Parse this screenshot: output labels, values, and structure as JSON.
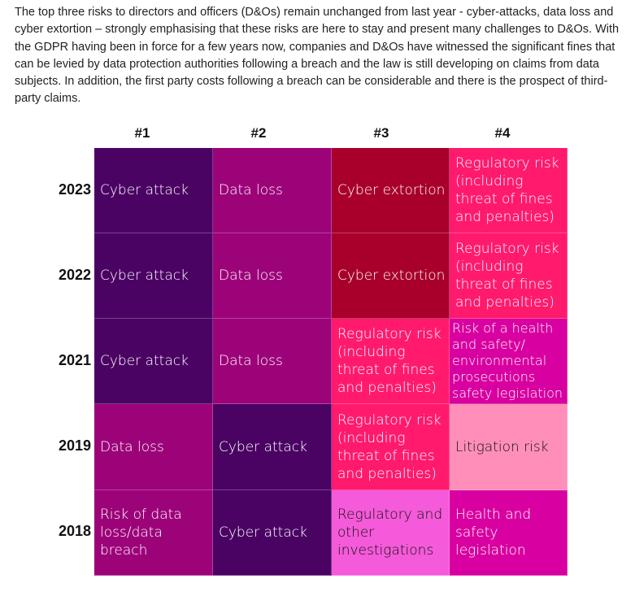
{
  "intro": "The top three risks to directors and officers (D&Os) remain unchanged from last year - cyber-attacks, data loss and cyber extortion – strongly emphasising that these risks are here to stay and present many challenges to D&Os. With the GDPR having been in force for a few years now, companies and D&Os have witnessed the significant fines that can be levied by data protection authorities following a breach and the law is still developing on claims from data subjects. In addition, the first party costs following a breach can be considerable and there is the prospect of third-party claims.",
  "columns": [
    "#1",
    "#2",
    "#3",
    "#4"
  ],
  "rows": [
    {
      "year": "2023",
      "cells": [
        {
          "text": "Cyber attack",
          "color": "#4a0363"
        },
        {
          "text": "Data loss",
          "color": "#9c0379"
        },
        {
          "text": "Cyber extortion",
          "color": "#a8002b"
        },
        {
          "text": "Regulatory risk (including threat of fines and penalties)",
          "color": "#ff1a6e"
        }
      ]
    },
    {
      "year": "2022",
      "cells": [
        {
          "text": "Cyber attack",
          "color": "#4a0363"
        },
        {
          "text": "Data loss",
          "color": "#9c0379"
        },
        {
          "text": "Cyber extortion",
          "color": "#a8002b"
        },
        {
          "text": "Regulatory risk (including threat of fines and penalties)",
          "color": "#ff1a6e"
        }
      ]
    },
    {
      "year": "2021",
      "cells": [
        {
          "text": "Cyber attack",
          "color": "#4a0363"
        },
        {
          "text": "Data loss",
          "color": "#9c0379"
        },
        {
          "text": "Regulatory risk (including threat of fines and penalties)",
          "color": "#ff1a6e"
        },
        {
          "text": "Risk of a health and safety/ environmental prosecutions safety legislation",
          "color": "#d800a0"
        }
      ]
    },
    {
      "year": "2019",
      "cells": [
        {
          "text": "Data loss",
          "color": "#9c0379"
        },
        {
          "text": "Cyber attack",
          "color": "#4a0363"
        },
        {
          "text": "Regulatory risk (including threat of fines and penalties)",
          "color": "#ff1a6e"
        },
        {
          "text": "Litigation risk",
          "color": "#ff8fb8"
        }
      ]
    },
    {
      "year": "2018",
      "cells": [
        {
          "text": "Risk of data loss/data breach",
          "color": "#9c0379"
        },
        {
          "text": "Cyber attack",
          "color": "#4a0363"
        },
        {
          "text": "Regulatory and other investigations",
          "color": "#f45ad9"
        },
        {
          "text": "Health and safety legislation",
          "color": "#d800a0"
        }
      ]
    }
  ]
}
